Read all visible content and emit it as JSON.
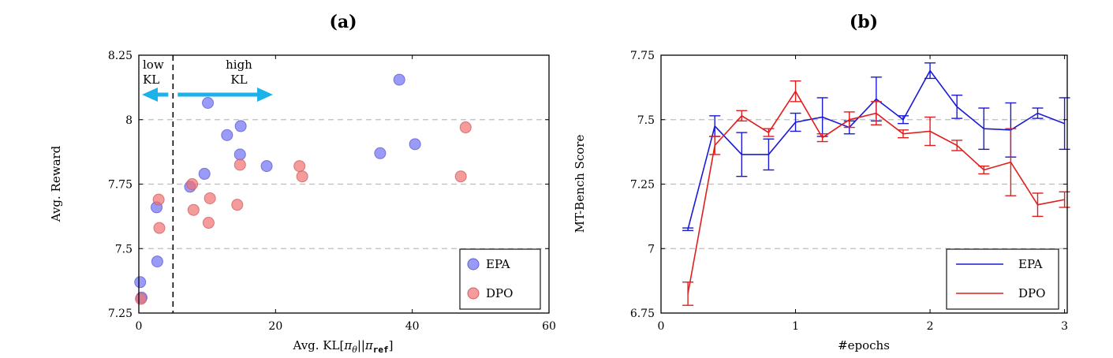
{
  "chart_data": [
    {
      "id": "a",
      "type": "scatter",
      "title": "(a)",
      "xlabel_prefix": "Avg. KL[",
      "xlabel_pi": "π",
      "xlabel_theta": "θ",
      "xlabel_mid": "||",
      "xlabel_pi2": "π",
      "xlabel_ref": "ref",
      "xlabel_suffix": "]",
      "ylabel": "Avg. Reward",
      "xlim": [
        0,
        60
      ],
      "ylim": [
        7.25,
        8.25
      ],
      "xticks": [
        {
          "v": 0,
          "label": "0"
        },
        {
          "v": 20,
          "label": "20"
        },
        {
          "v": 40,
          "label": "40"
        },
        {
          "v": 60,
          "label": "60"
        }
      ],
      "yticks": [
        {
          "v": 7.25,
          "label": "7.25"
        },
        {
          "v": 7.5,
          "label": "7.5"
        },
        {
          "v": 7.75,
          "label": "7.75"
        },
        {
          "v": 8.0,
          "label": "8"
        },
        {
          "v": 8.25,
          "label": "8.25"
        }
      ],
      "grid": "horizontal-dashed",
      "threshold_x": 5,
      "annotations": {
        "low_line1": "low",
        "low_line2": "KL",
        "high_line1": "high",
        "high_line2": "KL",
        "arrow_color": "#1ab2e8"
      },
      "legend_position": "bottom-right",
      "series": [
        {
          "name": "EPA",
          "color": "#6f6ff5",
          "points": [
            [
              0.2,
              7.37
            ],
            [
              0.4,
              7.31
            ],
            [
              2.6,
              7.66
            ],
            [
              2.7,
              7.45
            ],
            [
              7.5,
              7.74
            ],
            [
              9.6,
              7.79
            ],
            [
              10.1,
              8.065
            ],
            [
              12.9,
              7.94
            ],
            [
              14.8,
              7.865
            ],
            [
              14.9,
              7.975
            ],
            [
              18.7,
              7.82
            ],
            [
              35.3,
              7.87
            ],
            [
              38.1,
              8.155
            ],
            [
              40.4,
              7.905
            ]
          ]
        },
        {
          "name": "DPO",
          "color": "#f27070",
          "points": [
            [
              0.3,
              7.305
            ],
            [
              2.9,
              7.69
            ],
            [
              3.0,
              7.58
            ],
            [
              7.8,
              7.75
            ],
            [
              8.0,
              7.65
            ],
            [
              10.2,
              7.6
            ],
            [
              10.4,
              7.695
            ],
            [
              14.4,
              7.67
            ],
            [
              14.8,
              7.825
            ],
            [
              23.5,
              7.82
            ],
            [
              23.9,
              7.78
            ],
            [
              47.1,
              7.78
            ],
            [
              47.8,
              7.97
            ]
          ]
        }
      ]
    },
    {
      "id": "b",
      "type": "line",
      "title": "(b)",
      "xlabel": "#epochs",
      "ylabel": "MT-Bench Score",
      "xlim": [
        0,
        3.02
      ],
      "ylim": [
        6.75,
        7.75
      ],
      "xticks": [
        {
          "v": 0,
          "label": "0"
        },
        {
          "v": 1,
          "label": "1"
        },
        {
          "v": 2,
          "label": "2"
        },
        {
          "v": 3,
          "label": "3"
        }
      ],
      "yticks": [
        {
          "v": 6.75,
          "label": "6.75"
        },
        {
          "v": 7.0,
          "label": "7"
        },
        {
          "v": 7.25,
          "label": "7.25"
        },
        {
          "v": 7.5,
          "label": "7.5"
        },
        {
          "v": 7.75,
          "label": "7.75"
        }
      ],
      "grid": "horizontal-dashed",
      "legend_position": "bottom-right",
      "x": [
        0.2,
        0.4,
        0.6,
        0.8,
        1.0,
        1.2,
        1.4,
        1.6,
        1.8,
        2.0,
        2.2,
        2.4,
        2.6,
        2.8,
        3.0
      ],
      "series": [
        {
          "name": "EPA",
          "color": "#1a1ad6",
          "values": [
            7.075,
            7.475,
            7.365,
            7.365,
            7.49,
            7.51,
            7.47,
            7.58,
            7.5,
            7.69,
            7.55,
            7.465,
            7.46,
            7.525,
            7.485
          ],
          "err": [
            0.005,
            0.04,
            0.085,
            0.06,
            0.035,
            0.075,
            0.025,
            0.085,
            0.015,
            0.03,
            0.045,
            0.08,
            0.105,
            0.02,
            0.1
          ]
        },
        {
          "name": "DPO",
          "color": "#e01e1e",
          "values": [
            6.825,
            7.4,
            7.515,
            7.45,
            7.61,
            7.43,
            7.5,
            7.525,
            7.445,
            7.455,
            7.4,
            7.305,
            7.335,
            7.17,
            7.19
          ],
          "err": [
            0.045,
            0.035,
            0.02,
            0.015,
            0.04,
            0.015,
            0.03,
            0.045,
            0.015,
            0.055,
            0.02,
            0.015,
            0.13,
            0.045,
            0.03
          ]
        }
      ]
    }
  ]
}
